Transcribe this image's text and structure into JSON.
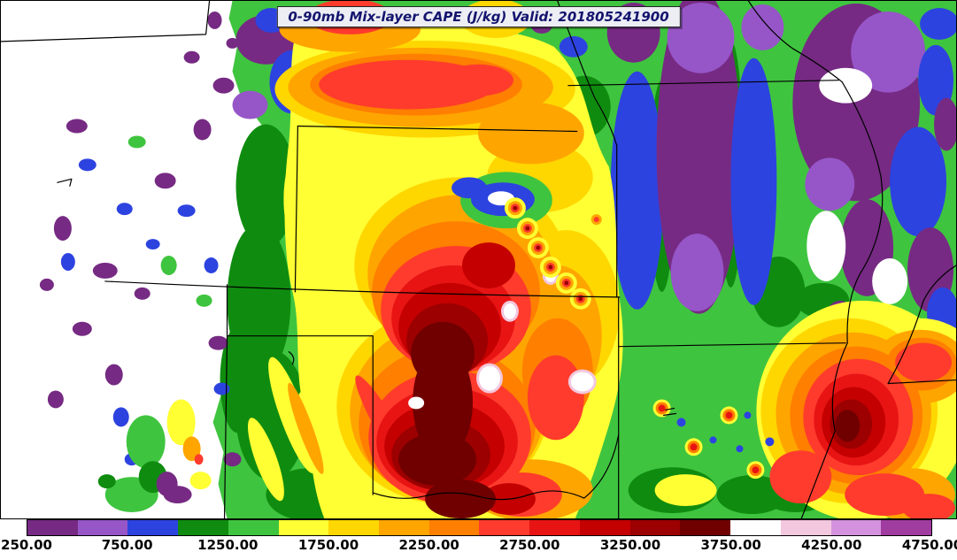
{
  "title": {
    "text": "0-90mb Mix-layer CAPE (J/kg) Valid: 201805241900"
  },
  "field": {
    "variable": "0-90mb Mix-layer CAPE",
    "units": "J/kg",
    "valid": "201805241900"
  },
  "colorbar": {
    "tick_labels": [
      "250.00",
      "750.00",
      "1250.00",
      "1750.00",
      "2250.00",
      "2750.00",
      "3250.00",
      "3750.00",
      "4250.00",
      "4750.00"
    ],
    "colors": [
      "#762a83",
      "#9656c8",
      "#2d43e0",
      "#0f8c0f",
      "#3fc43f",
      "#ffff33",
      "#ffd700",
      "#ffa500",
      "#ff7f00",
      "#ff3b2d",
      "#e81414",
      "#c40000",
      "#9c0000",
      "#700000",
      "#ffffff",
      "#f3c7dd",
      "#d492de",
      "#a03ba0"
    ],
    "below_min_color": "#ffffff"
  }
}
